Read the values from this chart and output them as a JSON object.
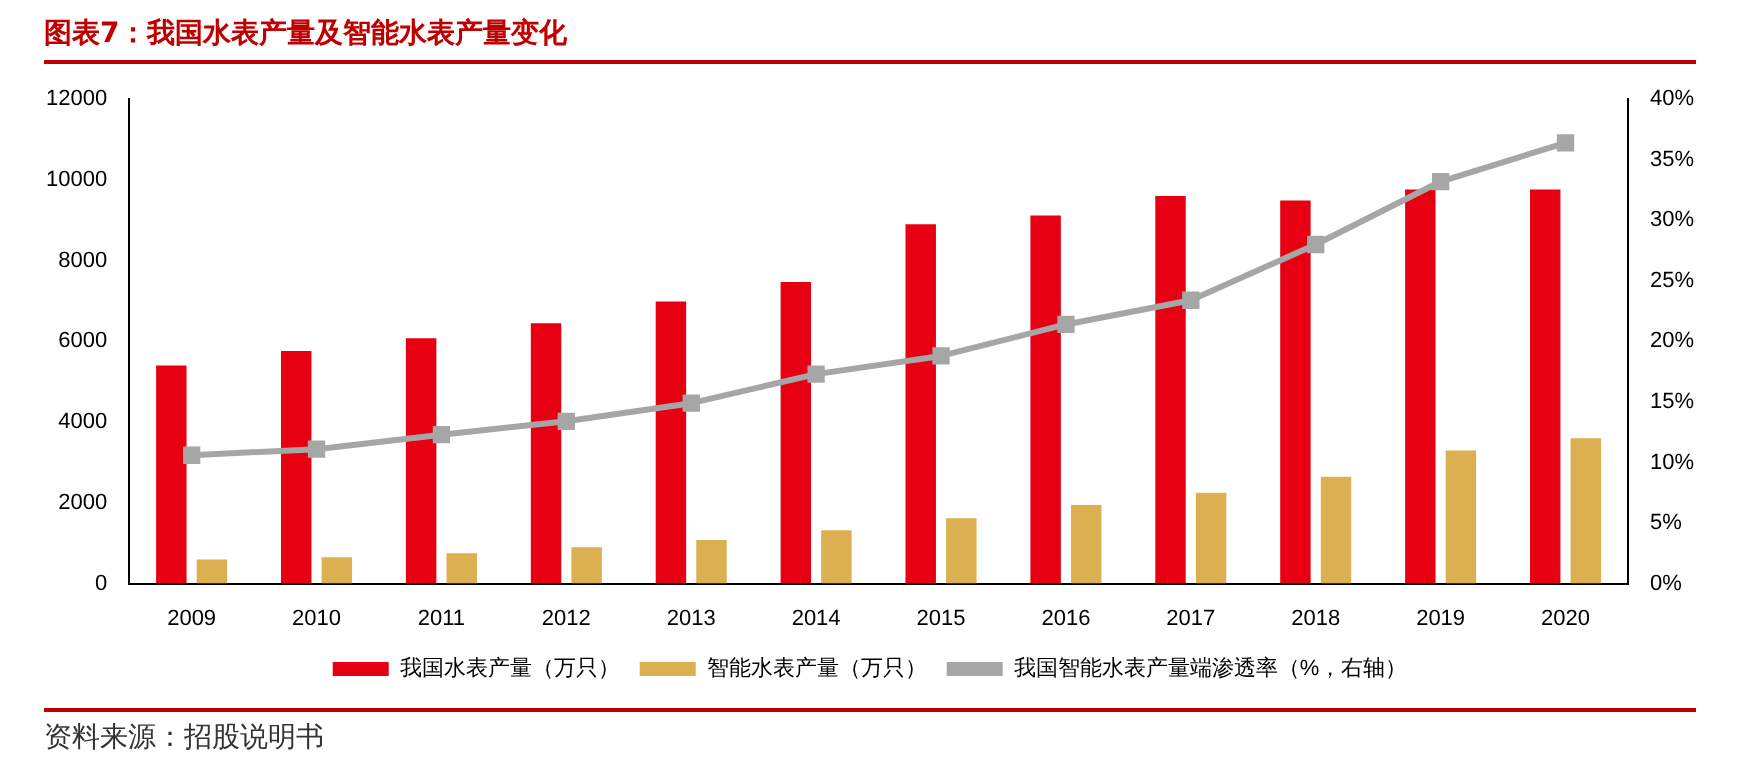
{
  "chart_data": {
    "type": "bar",
    "title": "图表7：我国水表产量及智能水表产量变化",
    "categories": [
      "2009",
      "2010",
      "2011",
      "2012",
      "2013",
      "2014",
      "2015",
      "2016",
      "2017",
      "2018",
      "2019",
      "2020"
    ],
    "series": [
      {
        "name": "我国水表产量（万只）",
        "color": "#e60012",
        "values": [
          5400,
          5760,
          6080,
          6450,
          6990,
          7470,
          8900,
          9120,
          9600,
          9490,
          9760,
          9760
        ]
      },
      {
        "name": "智能水表产量（万只）",
        "color": "#dcaf50",
        "values": [
          600,
          650,
          750,
          900,
          1080,
          1320,
          1620,
          1950,
          2250,
          2650,
          3300,
          3600
        ]
      },
      {
        "name": "我国智能水表产量端渗透率（%，右轴）",
        "color": "#a6a6a6",
        "type": "line",
        "axis": "y2",
        "marker": "square",
        "values": [
          10.6,
          11.1,
          12.3,
          13.4,
          14.9,
          17.3,
          18.8,
          21.4,
          23.4,
          28.0,
          33.2,
          36.4
        ]
      }
    ],
    "ylim": [
      0,
      12000
    ],
    "yticks": [
      0,
      2000,
      4000,
      6000,
      8000,
      10000,
      12000
    ],
    "y2lim": [
      0,
      40
    ],
    "y2ticks": [
      {
        "value": 0,
        "label": "0%"
      },
      {
        "value": 5,
        "label": "5%"
      },
      {
        "value": 10,
        "label": "10%"
      },
      {
        "value": 15,
        "label": "15%"
      },
      {
        "value": 20,
        "label": "20%"
      },
      {
        "value": 25,
        "label": "25%"
      },
      {
        "value": 30,
        "label": "30%"
      },
      {
        "value": 35,
        "label": "35%"
      },
      {
        "value": 40,
        "label": "40%"
      }
    ],
    "grid": false,
    "legend": "bottom",
    "annotations": [
      "资料来源：招股说明书"
    ]
  }
}
